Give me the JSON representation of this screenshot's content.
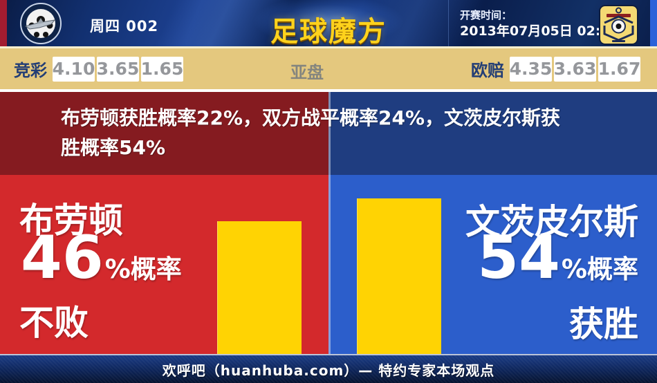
{
  "header": {
    "match_label": "周四 002",
    "logo_text": "足球魔方",
    "kickoff_label": "开赛时间：",
    "kickoff_time": "2013年07月05日 02:30",
    "home_badge": "Airbus UK Broughton 队徽",
    "away_badge": "FK Ventspils 队徽"
  },
  "odds": {
    "jingcai_label": "竞彩",
    "jingcai_values": [
      "4.10",
      "3.65",
      "1.65"
    ],
    "yapan_label": "亚盘",
    "oupei_label": "欧赔",
    "oupei_values": [
      "4.35",
      "3.63",
      "1.67"
    ]
  },
  "summary": {
    "line1": "布劳顿获胜概率22%，双方战平概率24%，文茨皮尔斯获",
    "line2": "胜概率54%"
  },
  "home": {
    "name": "布劳顿",
    "percent": "46",
    "suffix": "%概率",
    "outcome": "不败",
    "probability": 46
  },
  "away": {
    "name": "文茨皮尔斯",
    "percent": "54",
    "suffix": "%概率",
    "outcome": "获胜",
    "probability": 54
  },
  "footer": {
    "text": "欢呼吧（huanhuba.com）— 特约专家本场观点"
  },
  "colors": {
    "home_red": "#d3292c",
    "away_blue": "#2c5ecb",
    "band_red": "#851b20",
    "band_blue": "#1f3d80",
    "bar_yellow": "#ffd303",
    "odds_bar_bg": "#e4c87e",
    "header_navy": "#123070",
    "logo_gold": "#ffd21c"
  },
  "chart_data": {
    "type": "bar",
    "categories": [
      "布劳顿",
      "文茨皮尔斯"
    ],
    "values": [
      46,
      54
    ],
    "unit": "%",
    "value_labels": [
      "46%概率 不败",
      "54%概率 获胜"
    ],
    "title": "布劳顿获胜概率22%，双方战平概率24%，文茨皮尔斯获胜概率54%",
    "home_win_pct": 22,
    "draw_pct": 24,
    "away_win_pct": 54,
    "ylim": [
      0,
      62
    ],
    "legend_position": "none",
    "grid": false
  }
}
